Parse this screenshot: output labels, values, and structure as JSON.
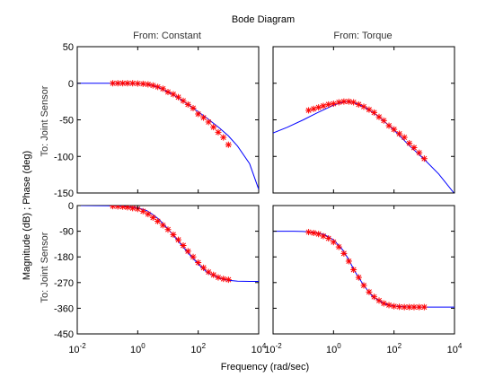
{
  "colors": {
    "trace": "#0000ff",
    "marker": "#ff0000",
    "frame": "#000000",
    "background": "#ffffff"
  },
  "labels": {
    "title": "Bode Diagram",
    "xlabel": "Frequency  (rad/sec)",
    "ylabel": "Magnitude (dB) ; Phase (deg)",
    "col_titles": [
      "From: Constant",
      "From: Torque"
    ],
    "row_titles": [
      "To: Joint Sensor",
      "To: Joint Sensor"
    ]
  },
  "chart_data": [
    {
      "type": "line",
      "title": "From: Constant",
      "ylabel": "To: Joint Sensor",
      "x_scale": "log",
      "xlim": [
        0.01,
        10000
      ],
      "ylim": [
        -150,
        50
      ],
      "x_ticks": [
        0.01,
        1,
        100,
        10000
      ],
      "x_ticklabels": [
        "",
        "",
        "",
        ""
      ],
      "y_ticks": [
        50,
        0,
        -50,
        -100,
        -150
      ],
      "y_ticklabels": [
        "50",
        "0",
        "-50",
        "-100",
        "-150"
      ],
      "series": [
        {
          "kind": "line",
          "color": "#0000ff",
          "x": [
            0.01,
            0.1,
            0.3,
            1,
            2,
            3,
            5,
            10,
            20,
            50,
            100,
            200,
            500,
            1000,
            2000,
            5000,
            10000
          ],
          "y": [
            0,
            0,
            0,
            -0.4,
            -1.5,
            -3,
            -6,
            -12,
            -19,
            -30,
            -39,
            -48,
            -61,
            -72,
            -86,
            -110,
            -145
          ]
        },
        {
          "kind": "markers",
          "color": "#ff0000",
          "x": [
            0.15,
            0.22,
            0.32,
            0.46,
            0.68,
            1,
            1.5,
            2.2,
            3.2,
            4.6,
            6.8,
            10,
            15,
            22,
            32,
            46,
            68,
            100,
            150,
            220,
            320,
            460,
            680,
            1000
          ],
          "y": [
            0,
            0,
            0,
            0,
            0,
            -0.4,
            -0.8,
            -1.5,
            -3,
            -5,
            -7.5,
            -12,
            -15,
            -19,
            -24,
            -29,
            -34,
            -42,
            -47,
            -53,
            -60,
            -67,
            -74,
            -84
          ]
        }
      ]
    },
    {
      "type": "line",
      "title": "From: Torque",
      "x_scale": "log",
      "xlim": [
        0.01,
        10000
      ],
      "ylim": [
        -150,
        50
      ],
      "x_ticks": [
        0.01,
        1,
        100,
        10000
      ],
      "x_ticklabels": [
        "",
        "",
        "",
        ""
      ],
      "y_ticks": [
        50,
        0,
        -50,
        -100,
        -150
      ],
      "y_ticklabels": [
        "",
        "",
        "",
        "",
        ""
      ],
      "series": [
        {
          "kind": "line",
          "color": "#0000ff",
          "x": [
            0.01,
            0.03,
            0.1,
            0.3,
            1,
            2,
            3,
            5,
            10,
            30,
            100,
            300,
            1000,
            3000,
            10000
          ],
          "y": [
            -68,
            -60,
            -50,
            -40,
            -30,
            -26,
            -25,
            -27,
            -32,
            -45,
            -64,
            -84,
            -104,
            -124,
            -151
          ]
        },
        {
          "kind": "markers",
          "color": "#ff0000",
          "x": [
            0.15,
            0.22,
            0.32,
            0.46,
            0.68,
            1,
            1.5,
            2.2,
            3.2,
            4.6,
            6.8,
            10,
            15,
            22,
            32,
            46,
            68,
            100,
            150,
            220,
            320,
            460,
            680,
            1000
          ],
          "y": [
            -37,
            -35,
            -33,
            -31,
            -29,
            -28,
            -26,
            -25,
            -25,
            -26,
            -29,
            -32,
            -36,
            -40,
            -46,
            -51,
            -58,
            -63,
            -69,
            -74,
            -82,
            -88,
            -95,
            -103
          ]
        }
      ]
    },
    {
      "type": "line",
      "ylabel": "To: Joint Sensor",
      "x_scale": "log",
      "xlim": [
        0.01,
        10000
      ],
      "ylim": [
        -450,
        0
      ],
      "x_ticks": [
        0.01,
        1,
        100,
        10000
      ],
      "x_ticklabels": [
        "10-2",
        "100",
        "102",
        "104"
      ],
      "y_ticks": [
        0,
        -90,
        -180,
        -270,
        -360,
        -450
      ],
      "y_ticklabels": [
        "0",
        "-90",
        "-180",
        "-270",
        "-360",
        "-450"
      ],
      "series": [
        {
          "kind": "line",
          "color": "#0000ff",
          "x": [
            0.01,
            0.1,
            0.3,
            1,
            2,
            3,
            5,
            10,
            20,
            50,
            100,
            200,
            500,
            1000,
            2000,
            5000,
            10000
          ],
          "y": [
            0,
            -1,
            -2,
            -8,
            -18,
            -30,
            -48,
            -82,
            -120,
            -170,
            -205,
            -235,
            -255,
            -262,
            -265,
            -266,
            -266
          ]
        },
        {
          "kind": "markers",
          "color": "#ff0000",
          "x": [
            0.15,
            0.22,
            0.32,
            0.46,
            0.68,
            1,
            1.5,
            2.2,
            3.2,
            4.6,
            6.8,
            10,
            15,
            22,
            32,
            46,
            68,
            100,
            150,
            220,
            320,
            460,
            680,
            1000
          ],
          "y": [
            -2,
            -3,
            -4,
            -6,
            -9,
            -12,
            -20,
            -30,
            -42,
            -55,
            -69,
            -84,
            -102,
            -120,
            -140,
            -160,
            -180,
            -200,
            -218,
            -233,
            -243,
            -252,
            -257,
            -260
          ]
        }
      ]
    },
    {
      "type": "line",
      "x_scale": "log",
      "xlim": [
        0.01,
        10000
      ],
      "ylim": [
        -450,
        0
      ],
      "x_ticks": [
        0.01,
        1,
        100,
        10000
      ],
      "x_ticklabels": [
        "10-2",
        "100",
        "102",
        "104"
      ],
      "y_ticks": [
        0,
        -90,
        -180,
        -270,
        -360,
        -450
      ],
      "y_ticklabels": [
        "",
        "",
        "",
        "",
        "",
        ""
      ],
      "series": [
        {
          "kind": "line",
          "color": "#0000ff",
          "x": [
            0.01,
            0.05,
            0.1,
            0.3,
            0.5,
            1,
            2,
            3,
            5,
            10,
            20,
            50,
            100,
            200,
            500,
            1000,
            10000
          ],
          "y": [
            -90,
            -90,
            -91,
            -96,
            -102,
            -120,
            -155,
            -185,
            -230,
            -280,
            -320,
            -345,
            -352,
            -355,
            -356,
            -356,
            -356
          ]
        },
        {
          "kind": "markers",
          "color": "#ff0000",
          "x": [
            0.15,
            0.22,
            0.32,
            0.46,
            0.68,
            1,
            1.5,
            2.2,
            3.2,
            4.6,
            6.8,
            10,
            15,
            22,
            32,
            46,
            68,
            100,
            150,
            220,
            320,
            460,
            680,
            1000
          ],
          "y": [
            -93,
            -96,
            -100,
            -107,
            -115,
            -128,
            -145,
            -168,
            -195,
            -225,
            -252,
            -280,
            -303,
            -320,
            -333,
            -343,
            -349,
            -353,
            -355,
            -356,
            -356,
            -356,
            -356,
            -356
          ]
        }
      ]
    }
  ]
}
